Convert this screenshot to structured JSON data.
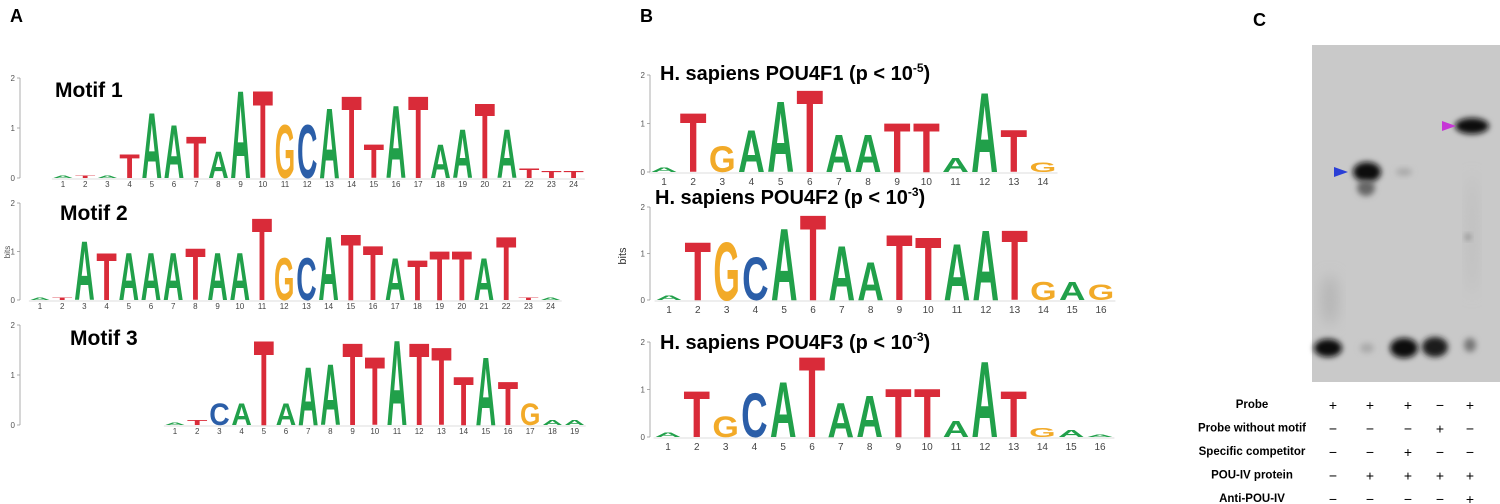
{
  "panel_a": {
    "label": "A",
    "ylabel": "bits",
    "ylim": [
      0,
      2
    ],
    "yticks": [
      0,
      1,
      2
    ],
    "motifs": [
      {
        "title": "Motif 1",
        "positions": [
          1,
          2,
          3,
          4,
          5,
          6,
          7,
          8,
          9,
          10,
          11,
          12,
          13,
          14,
          15,
          16,
          17,
          18,
          19,
          20,
          21,
          22,
          23,
          24
        ],
        "letters": [
          "A",
          "T",
          "A",
          "T",
          "A",
          "A",
          "T",
          "A",
          "A",
          "T",
          "G",
          "C",
          "A",
          "T",
          "T",
          "A",
          "T",
          "A",
          "A",
          "T",
          "A",
          "T",
          "T",
          "T"
        ],
        "heights": [
          0.05,
          0.05,
          0.05,
          0.5,
          1.35,
          1.1,
          0.85,
          0.55,
          1.8,
          1.8,
          1.1,
          1.1,
          1.45,
          1.7,
          0.7,
          1.5,
          1.7,
          0.7,
          1.0,
          1.55,
          1.0,
          0.2,
          0.15,
          0.15
        ]
      },
      {
        "title": "Motif 2",
        "positions": [
          1,
          2,
          3,
          4,
          5,
          6,
          7,
          8,
          9,
          10,
          11,
          12,
          13,
          14,
          15,
          16,
          17,
          18,
          19,
          20,
          21,
          22,
          23,
          24
        ],
        "letters": [
          "A",
          "T",
          "A",
          "T",
          "A",
          "A",
          "A",
          "T",
          "A",
          "A",
          "T",
          "G",
          "C",
          "A",
          "T",
          "T",
          "A",
          "T",
          "T",
          "T",
          "A",
          "T",
          "T",
          "A"
        ],
        "heights": [
          0.05,
          0.05,
          1.25,
          1.0,
          1.0,
          1.0,
          1.0,
          1.1,
          1.0,
          1.0,
          1.75,
          0.9,
          0.9,
          1.35,
          1.4,
          1.15,
          0.9,
          0.85,
          1.05,
          1.05,
          0.9,
          1.35,
          0.05,
          0.05
        ]
      },
      {
        "title": "Motif 3",
        "positions": [
          1,
          2,
          3,
          4,
          5,
          6,
          7,
          8,
          9,
          10,
          11,
          12,
          13,
          14,
          15,
          16,
          17,
          18,
          19
        ],
        "letters": [
          "A",
          "T",
          "C",
          "A",
          "T",
          "A",
          "A",
          "A",
          "T",
          "T",
          "A",
          "T",
          "T",
          "T",
          "A",
          "T",
          "G",
          "A",
          "A"
        ],
        "heights": [
          0.05,
          0.1,
          0.45,
          0.45,
          1.75,
          0.45,
          1.2,
          1.25,
          1.7,
          1.4,
          1.75,
          1.7,
          1.6,
          1.0,
          1.4,
          0.9,
          0.45,
          0.1,
          0.1
        ]
      }
    ]
  },
  "panel_b": {
    "label": "B",
    "ylabel": "bits",
    "ylim": [
      0,
      2
    ],
    "yticks": [
      0,
      1,
      2
    ],
    "logos": [
      {
        "title_prefix": "H. sapiens POU4F1 (p < 10",
        "title_exponent": "-5",
        "title_suffix": ")",
        "positions": [
          1,
          2,
          3,
          4,
          5,
          6,
          7,
          8,
          9,
          10,
          11,
          12,
          13,
          14
        ],
        "letters": [
          "A",
          "T",
          "G",
          "A",
          "A",
          "T",
          "A",
          "A",
          "T",
          "T",
          "A",
          "A",
          "T",
          "G"
        ],
        "heights": [
          0.1,
          1.25,
          0.55,
          0.9,
          1.5,
          1.75,
          0.8,
          0.8,
          1.05,
          1.05,
          0.3,
          1.7,
          0.9,
          0.2
        ]
      },
      {
        "title_prefix": "H. sapiens POU4F2 (p < 10",
        "title_exponent": "-3",
        "title_suffix": ")",
        "positions": [
          1,
          2,
          3,
          4,
          5,
          6,
          7,
          8,
          9,
          10,
          11,
          12,
          13,
          14,
          15,
          16
        ],
        "letters": [
          "A",
          "T",
          "G",
          "C",
          "A",
          "T",
          "A",
          "A",
          "T",
          "T",
          "A",
          "A",
          "T",
          "G",
          "A",
          "G"
        ],
        "heights": [
          0.1,
          1.3,
          1.3,
          0.95,
          1.6,
          1.9,
          1.2,
          0.85,
          1.45,
          1.4,
          1.25,
          1.55,
          1.55,
          0.4,
          0.4,
          0.35
        ]
      },
      {
        "title_prefix": "H. sapiens POU4F3 (p < 10",
        "title_exponent": "-3",
        "title_suffix": ")",
        "positions": [
          1,
          2,
          3,
          4,
          5,
          6,
          7,
          8,
          9,
          10,
          11,
          12,
          13,
          14,
          15,
          16
        ],
        "letters": [
          "A",
          "T",
          "G",
          "C",
          "A",
          "T",
          "A",
          "A",
          "T",
          "T",
          "A",
          "A",
          "T",
          "G",
          "A",
          "A"
        ],
        "heights": [
          0.1,
          1.0,
          0.45,
          0.95,
          1.2,
          1.75,
          0.75,
          0.9,
          1.05,
          1.05,
          0.35,
          1.65,
          1.0,
          0.2,
          0.15,
          0.05
        ]
      }
    ]
  },
  "panel_c": {
    "label": "C",
    "rows": [
      {
        "label": "Probe",
        "lanes": [
          "+",
          "+",
          "+",
          "−",
          "+"
        ]
      },
      {
        "label": "Probe without motif",
        "lanes": [
          "−",
          "−",
          "−",
          "+",
          "−"
        ]
      },
      {
        "label": "Specific competitor",
        "lanes": [
          "−",
          "−",
          "+",
          "−",
          "−"
        ]
      },
      {
        "label": "POU-IV protein",
        "lanes": [
          "−",
          "+",
          "+",
          "+",
          "+"
        ]
      },
      {
        "label": "Anti-POU-IV",
        "lanes": [
          "−",
          "−",
          "−",
          "−",
          "+"
        ]
      }
    ]
  }
}
